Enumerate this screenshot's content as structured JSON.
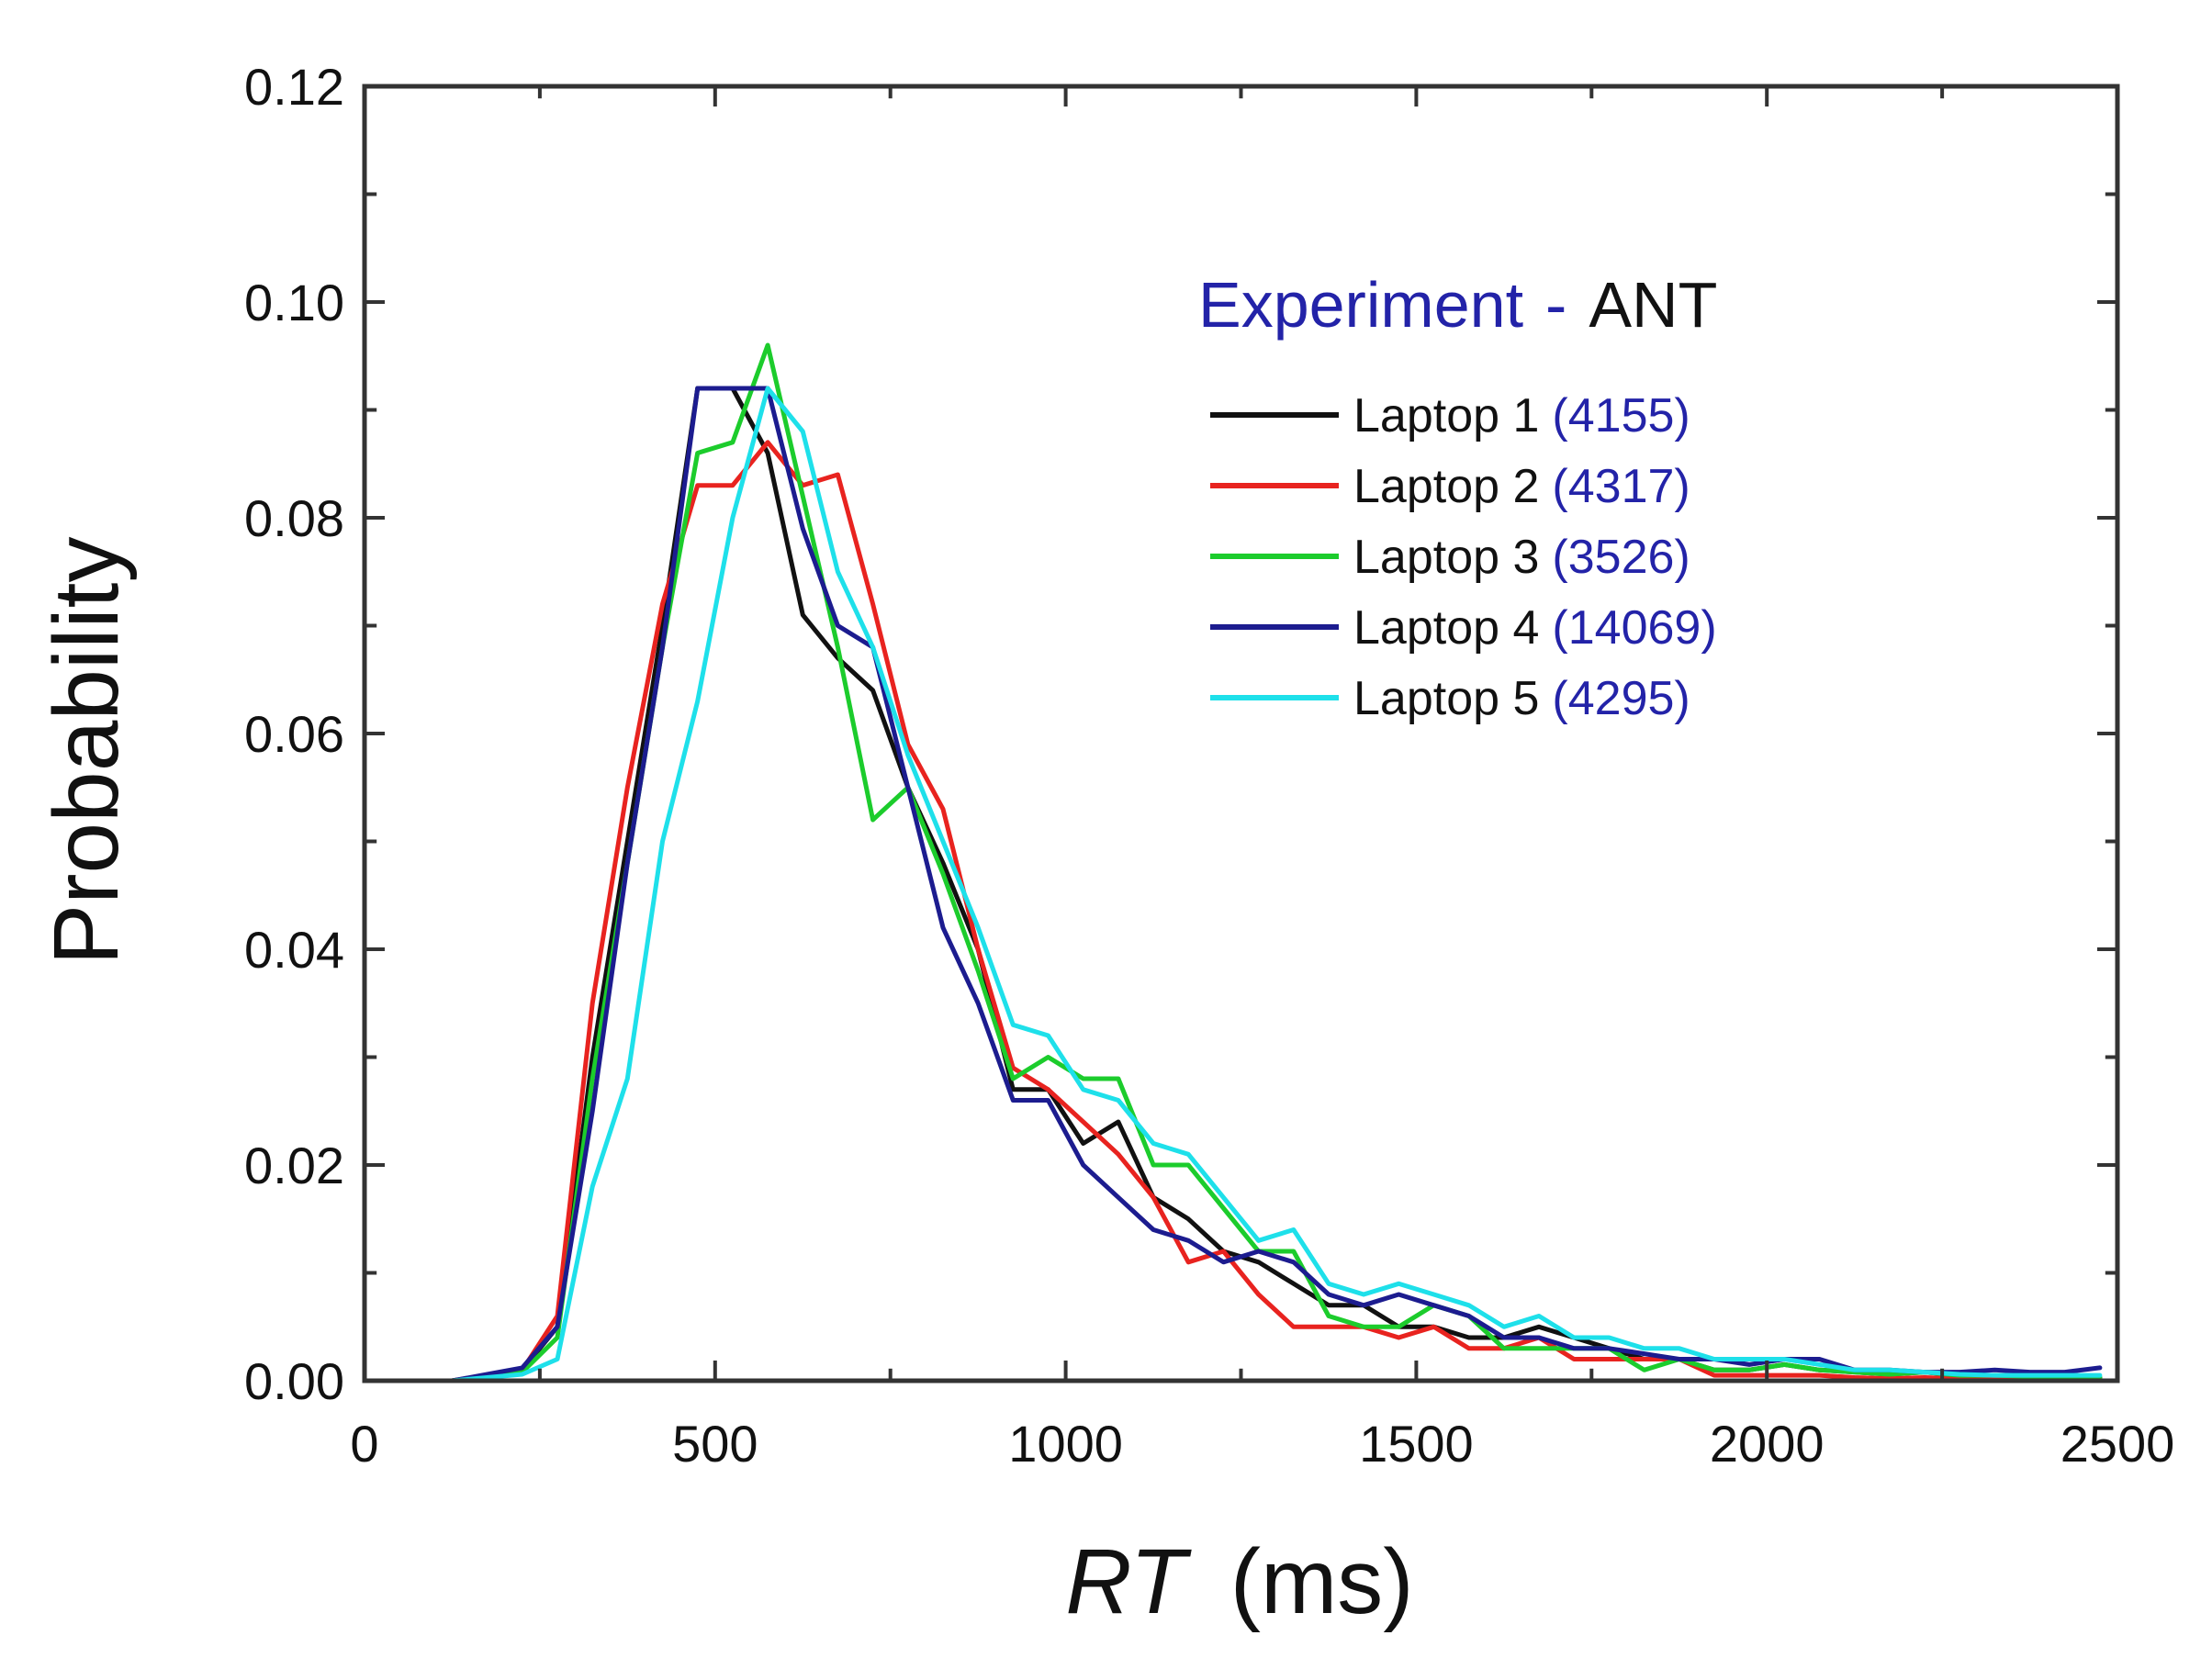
{
  "chart_data": {
    "type": "line",
    "title": "",
    "legend_title": {
      "text_blue": "Experiment",
      "separator": "-",
      "text_black": "ANT"
    },
    "xlabel": {
      "italic": "RT",
      "rest": "(ms)"
    },
    "ylabel": "Probability",
    "xlim": [
      0,
      2500
    ],
    "ylim": [
      0,
      0.12
    ],
    "xticks": [
      0,
      500,
      1000,
      1500,
      2000,
      2500
    ],
    "xtick_labels": [
      "0",
      "500",
      "1000",
      "1500",
      "2000",
      "2500"
    ],
    "yticks": [
      0,
      0.02,
      0.04,
      0.06,
      0.08,
      0.1,
      0.12
    ],
    "ytick_labels": [
      "0.00",
      "0.02",
      "0.04",
      "0.06",
      "0.08",
      "0.10",
      "0.12"
    ],
    "legend_position": "top-right",
    "series": [
      {
        "name": "Laptop 1",
        "count": "(4155)",
        "color": "#111111",
        "points": [
          [
            25,
            0
          ],
          [
            75,
            0
          ],
          [
            125,
            0
          ],
          [
            175,
            0.0005
          ],
          [
            225,
            0.001
          ],
          [
            275,
            0.005
          ],
          [
            325,
            0.03
          ],
          [
            375,
            0.05
          ],
          [
            425,
            0.07
          ],
          [
            475,
            0.092
          ],
          [
            525,
            0.092
          ],
          [
            575,
            0.086
          ],
          [
            625,
            0.071
          ],
          [
            675,
            0.067
          ],
          [
            725,
            0.064
          ],
          [
            775,
            0.055
          ],
          [
            825,
            0.048
          ],
          [
            875,
            0.04
          ],
          [
            925,
            0.027
          ],
          [
            975,
            0.027
          ],
          [
            1025,
            0.022
          ],
          [
            1075,
            0.024
          ],
          [
            1125,
            0.017
          ],
          [
            1175,
            0.015
          ],
          [
            1225,
            0.012
          ],
          [
            1275,
            0.011
          ],
          [
            1325,
            0.009
          ],
          [
            1375,
            0.007
          ],
          [
            1425,
            0.007
          ],
          [
            1475,
            0.005
          ],
          [
            1525,
            0.005
          ],
          [
            1575,
            0.004
          ],
          [
            1625,
            0.004
          ],
          [
            1675,
            0.005
          ],
          [
            1725,
            0.004
          ],
          [
            1775,
            0.003
          ],
          [
            1825,
            0.002
          ],
          [
            1875,
            0.002
          ],
          [
            1925,
            0.001
          ],
          [
            1975,
            0.001
          ],
          [
            2025,
            0.0015
          ],
          [
            2075,
            0.001
          ],
          [
            2125,
            0.0008
          ],
          [
            2175,
            0.0006
          ],
          [
            2225,
            0.0008
          ],
          [
            2275,
            0.0005
          ],
          [
            2325,
            0.0005
          ],
          [
            2375,
            0.0004
          ],
          [
            2425,
            0.0003
          ],
          [
            2475,
            0.0003
          ]
        ]
      },
      {
        "name": "Laptop 2",
        "count": "(4317)",
        "color": "#e8231f",
        "points": [
          [
            25,
            0
          ],
          [
            75,
            0
          ],
          [
            125,
            0
          ],
          [
            175,
            0.0005
          ],
          [
            225,
            0.001
          ],
          [
            275,
            0.006
          ],
          [
            325,
            0.035
          ],
          [
            375,
            0.055
          ],
          [
            425,
            0.072
          ],
          [
            475,
            0.083
          ],
          [
            525,
            0.083
          ],
          [
            575,
            0.087
          ],
          [
            625,
            0.083
          ],
          [
            675,
            0.084
          ],
          [
            725,
            0.072
          ],
          [
            775,
            0.059
          ],
          [
            825,
            0.053
          ],
          [
            875,
            0.04
          ],
          [
            925,
            0.029
          ],
          [
            975,
            0.027
          ],
          [
            1025,
            0.024
          ],
          [
            1075,
            0.021
          ],
          [
            1125,
            0.017
          ],
          [
            1175,
            0.011
          ],
          [
            1225,
            0.012
          ],
          [
            1275,
            0.008
          ],
          [
            1325,
            0.005
          ],
          [
            1375,
            0.005
          ],
          [
            1425,
            0.005
          ],
          [
            1475,
            0.004
          ],
          [
            1525,
            0.005
          ],
          [
            1575,
            0.003
          ],
          [
            1625,
            0.003
          ],
          [
            1675,
            0.004
          ],
          [
            1725,
            0.002
          ],
          [
            1775,
            0.002
          ],
          [
            1825,
            0.002
          ],
          [
            1875,
            0.002
          ],
          [
            1925,
            0.0005
          ],
          [
            1975,
            0.0005
          ],
          [
            2025,
            0.0005
          ],
          [
            2075,
            0.0005
          ],
          [
            2125,
            0.0003
          ],
          [
            2175,
            0.0002
          ],
          [
            2225,
            0.0003
          ],
          [
            2275,
            0.0002
          ],
          [
            2325,
            0.0002
          ],
          [
            2375,
            0.0002
          ],
          [
            2425,
            0.0001
          ],
          [
            2475,
            0.0001
          ]
        ]
      },
      {
        "name": "Laptop 3",
        "count": "(3526)",
        "color": "#1ccc2c",
        "points": [
          [
            25,
            0
          ],
          [
            75,
            0
          ],
          [
            125,
            0
          ],
          [
            175,
            0.0003
          ],
          [
            225,
            0.0008
          ],
          [
            275,
            0.004
          ],
          [
            325,
            0.028
          ],
          [
            375,
            0.048
          ],
          [
            425,
            0.068
          ],
          [
            475,
            0.086
          ],
          [
            525,
            0.087
          ],
          [
            575,
            0.096
          ],
          [
            625,
            0.082
          ],
          [
            675,
            0.068
          ],
          [
            725,
            0.052
          ],
          [
            775,
            0.055
          ],
          [
            825,
            0.047
          ],
          [
            875,
            0.038
          ],
          [
            925,
            0.028
          ],
          [
            975,
            0.03
          ],
          [
            1025,
            0.028
          ],
          [
            1075,
            0.028
          ],
          [
            1125,
            0.02
          ],
          [
            1175,
            0.02
          ],
          [
            1225,
            0.016
          ],
          [
            1275,
            0.012
          ],
          [
            1325,
            0.012
          ],
          [
            1375,
            0.006
          ],
          [
            1425,
            0.005
          ],
          [
            1475,
            0.005
          ],
          [
            1525,
            0.007
          ],
          [
            1575,
            0.006
          ],
          [
            1625,
            0.003
          ],
          [
            1675,
            0.003
          ],
          [
            1725,
            0.003
          ],
          [
            1775,
            0.003
          ],
          [
            1825,
            0.001
          ],
          [
            1875,
            0.002
          ],
          [
            1925,
            0.001
          ],
          [
            1975,
            0.001
          ],
          [
            2025,
            0.0015
          ],
          [
            2075,
            0.001
          ],
          [
            2125,
            0.0008
          ],
          [
            2175,
            0.0006
          ],
          [
            2225,
            0.0008
          ],
          [
            2275,
            0.0005
          ],
          [
            2325,
            0.0005
          ],
          [
            2375,
            0.0004
          ],
          [
            2425,
            0.0003
          ],
          [
            2475,
            0.0003
          ]
        ]
      },
      {
        "name": "Laptop 4",
        "count": "(14069)",
        "color": "#1c1c8f",
        "points": [
          [
            25,
            0
          ],
          [
            75,
            0
          ],
          [
            125,
            0
          ],
          [
            175,
            0.0006
          ],
          [
            225,
            0.0012
          ],
          [
            275,
            0.005
          ],
          [
            325,
            0.025
          ],
          [
            375,
            0.048
          ],
          [
            425,
            0.068
          ],
          [
            475,
            0.092
          ],
          [
            525,
            0.092
          ],
          [
            575,
            0.092
          ],
          [
            625,
            0.079
          ],
          [
            675,
            0.07
          ],
          [
            725,
            0.068
          ],
          [
            775,
            0.055
          ],
          [
            825,
            0.042
          ],
          [
            875,
            0.035
          ],
          [
            925,
            0.026
          ],
          [
            975,
            0.026
          ],
          [
            1025,
            0.02
          ],
          [
            1075,
            0.017
          ],
          [
            1125,
            0.014
          ],
          [
            1175,
            0.013
          ],
          [
            1225,
            0.011
          ],
          [
            1275,
            0.012
          ],
          [
            1325,
            0.011
          ],
          [
            1375,
            0.008
          ],
          [
            1425,
            0.007
          ],
          [
            1475,
            0.008
          ],
          [
            1525,
            0.007
          ],
          [
            1575,
            0.006
          ],
          [
            1625,
            0.004
          ],
          [
            1675,
            0.004
          ],
          [
            1725,
            0.003
          ],
          [
            1775,
            0.003
          ],
          [
            1825,
            0.0025
          ],
          [
            1875,
            0.002
          ],
          [
            1925,
            0.002
          ],
          [
            1975,
            0.0015
          ],
          [
            2025,
            0.002
          ],
          [
            2075,
            0.002
          ],
          [
            2125,
            0.001
          ],
          [
            2175,
            0.001
          ],
          [
            2225,
            0.0008
          ],
          [
            2275,
            0.0008
          ],
          [
            2325,
            0.001
          ],
          [
            2375,
            0.0008
          ],
          [
            2425,
            0.0008
          ],
          [
            2475,
            0.0012
          ]
        ]
      },
      {
        "name": "Laptop 5",
        "count": "(4295)",
        "color": "#1ee0ea",
        "points": [
          [
            25,
            0
          ],
          [
            75,
            0
          ],
          [
            125,
            0
          ],
          [
            175,
            0.0003
          ],
          [
            225,
            0.0006
          ],
          [
            275,
            0.002
          ],
          [
            325,
            0.018
          ],
          [
            375,
            0.028
          ],
          [
            425,
            0.05
          ],
          [
            475,
            0.063
          ],
          [
            525,
            0.08
          ],
          [
            575,
            0.092
          ],
          [
            625,
            0.088
          ],
          [
            675,
            0.075
          ],
          [
            725,
            0.068
          ],
          [
            775,
            0.058
          ],
          [
            825,
            0.05
          ],
          [
            875,
            0.042
          ],
          [
            925,
            0.033
          ],
          [
            975,
            0.032
          ],
          [
            1025,
            0.027
          ],
          [
            1075,
            0.026
          ],
          [
            1125,
            0.022
          ],
          [
            1175,
            0.021
          ],
          [
            1225,
            0.017
          ],
          [
            1275,
            0.013
          ],
          [
            1325,
            0.014
          ],
          [
            1375,
            0.009
          ],
          [
            1425,
            0.008
          ],
          [
            1475,
            0.009
          ],
          [
            1525,
            0.008
          ],
          [
            1575,
            0.007
          ],
          [
            1625,
            0.005
          ],
          [
            1675,
            0.006
          ],
          [
            1725,
            0.004
          ],
          [
            1775,
            0.004
          ],
          [
            1825,
            0.003
          ],
          [
            1875,
            0.003
          ],
          [
            1925,
            0.002
          ],
          [
            1975,
            0.002
          ],
          [
            2025,
            0.002
          ],
          [
            2075,
            0.0015
          ],
          [
            2125,
            0.001
          ],
          [
            2175,
            0.001
          ],
          [
            2225,
            0.0008
          ],
          [
            2275,
            0.0006
          ],
          [
            2325,
            0.0005
          ],
          [
            2375,
            0.0005
          ],
          [
            2425,
            0.0005
          ],
          [
            2475,
            0.0005
          ]
        ]
      }
    ],
    "colors": {
      "axis": "#333333",
      "legend_title_blue": "#2323a8",
      "legend_count": "#2323a8"
    }
  }
}
